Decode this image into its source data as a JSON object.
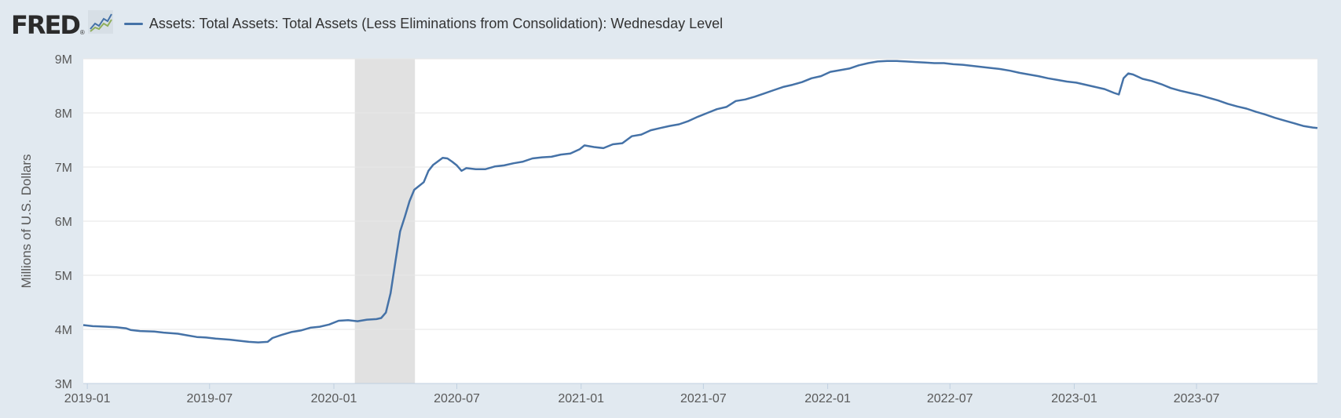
{
  "header": {
    "logo_text": "FRED",
    "logo_mark": "®",
    "series_title": "Assets: Total Assets: Total Assets (Less Eliminations from Consolidation): Wednesday Level"
  },
  "chart_data": {
    "type": "line",
    "title": "",
    "xlabel": "",
    "ylabel": "Millions of U.S. Dollars",
    "y_tick_labels": [
      "3M",
      "4M",
      "5M",
      "6M",
      "7M",
      "8M",
      "9M"
    ],
    "y_ticks": [
      3000000,
      4000000,
      5000000,
      6000000,
      7000000,
      8000000,
      9000000
    ],
    "ylim": [
      3000000,
      9000000
    ],
    "x_tick_labels": [
      "2019-01",
      "2019-07",
      "2020-01",
      "2020-07",
      "2021-01",
      "2021-07",
      "2022-01",
      "2022-07",
      "2023-01",
      "2023-07"
    ],
    "x_ticks": [
      "2019-01-01",
      "2019-07-01",
      "2020-01-01",
      "2020-07-01",
      "2021-01-01",
      "2021-07-01",
      "2022-01-01",
      "2022-07-01",
      "2023-01-01",
      "2023-07-01"
    ],
    "xlim": [
      "2018-12-26",
      "2023-12-27"
    ],
    "grid": true,
    "recessions": [
      {
        "start": "2020-02-01",
        "end": "2020-04-30"
      }
    ],
    "colors": {
      "line": "#4572a7",
      "recession": "#e1e1e1",
      "plot_bg": "#ffffff",
      "gridline": "#e6e6e6",
      "page_bg": "#e1e9f0"
    },
    "series": [
      {
        "values": [
          [
            "2018-12-26",
            4080000
          ],
          [
            "2019-01-09",
            4060000
          ],
          [
            "2019-01-30",
            4050000
          ],
          [
            "2019-02-13",
            4040000
          ],
          [
            "2019-02-27",
            4020000
          ],
          [
            "2019-03-06",
            3990000
          ],
          [
            "2019-03-20",
            3970000
          ],
          [
            "2019-04-10",
            3960000
          ],
          [
            "2019-04-24",
            3940000
          ],
          [
            "2019-05-15",
            3920000
          ],
          [
            "2019-05-29",
            3890000
          ],
          [
            "2019-06-12",
            3860000
          ],
          [
            "2019-06-26",
            3850000
          ],
          [
            "2019-07-10",
            3830000
          ],
          [
            "2019-07-31",
            3810000
          ],
          [
            "2019-08-14",
            3790000
          ],
          [
            "2019-08-28",
            3770000
          ],
          [
            "2019-09-11",
            3760000
          ],
          [
            "2019-09-25",
            3770000
          ],
          [
            "2019-10-02",
            3840000
          ],
          [
            "2019-10-16",
            3900000
          ],
          [
            "2019-10-30",
            3950000
          ],
          [
            "2019-11-13",
            3980000
          ],
          [
            "2019-11-27",
            4030000
          ],
          [
            "2019-12-11",
            4050000
          ],
          [
            "2019-12-25",
            4090000
          ],
          [
            "2020-01-08",
            4160000
          ],
          [
            "2020-01-22",
            4170000
          ],
          [
            "2020-02-05",
            4150000
          ],
          [
            "2020-02-19",
            4180000
          ],
          [
            "2020-03-04",
            4190000
          ],
          [
            "2020-03-11",
            4210000
          ],
          [
            "2020-03-18",
            4310000
          ],
          [
            "2020-03-25",
            4670000
          ],
          [
            "2020-04-01",
            5250000
          ],
          [
            "2020-04-08",
            5810000
          ],
          [
            "2020-04-15",
            6080000
          ],
          [
            "2020-04-22",
            6370000
          ],
          [
            "2020-04-29",
            6580000
          ],
          [
            "2020-05-13",
            6720000
          ],
          [
            "2020-05-20",
            6930000
          ],
          [
            "2020-05-27",
            7040000
          ],
          [
            "2020-06-10",
            7170000
          ],
          [
            "2020-06-17",
            7160000
          ],
          [
            "2020-06-24",
            7100000
          ],
          [
            "2020-07-01",
            7030000
          ],
          [
            "2020-07-08",
            6930000
          ],
          [
            "2020-07-15",
            6980000
          ],
          [
            "2020-07-29",
            6960000
          ],
          [
            "2020-08-12",
            6960000
          ],
          [
            "2020-08-26",
            7010000
          ],
          [
            "2020-09-09",
            7030000
          ],
          [
            "2020-09-23",
            7070000
          ],
          [
            "2020-10-07",
            7100000
          ],
          [
            "2020-10-21",
            7160000
          ],
          [
            "2020-11-04",
            7180000
          ],
          [
            "2020-11-18",
            7190000
          ],
          [
            "2020-12-02",
            7230000
          ],
          [
            "2020-12-16",
            7250000
          ],
          [
            "2020-12-30",
            7330000
          ],
          [
            "2021-01-06",
            7400000
          ],
          [
            "2021-01-20",
            7370000
          ],
          [
            "2021-02-03",
            7350000
          ],
          [
            "2021-02-17",
            7420000
          ],
          [
            "2021-03-03",
            7440000
          ],
          [
            "2021-03-17",
            7570000
          ],
          [
            "2021-03-31",
            7600000
          ],
          [
            "2021-04-14",
            7680000
          ],
          [
            "2021-04-28",
            7720000
          ],
          [
            "2021-05-12",
            7760000
          ],
          [
            "2021-05-26",
            7790000
          ],
          [
            "2021-06-09",
            7850000
          ],
          [
            "2021-06-23",
            7930000
          ],
          [
            "2021-07-07",
            8000000
          ],
          [
            "2021-07-21",
            8070000
          ],
          [
            "2021-08-04",
            8110000
          ],
          [
            "2021-08-18",
            8220000
          ],
          [
            "2021-09-01",
            8250000
          ],
          [
            "2021-09-15",
            8300000
          ],
          [
            "2021-09-29",
            8360000
          ],
          [
            "2021-10-13",
            8420000
          ],
          [
            "2021-10-27",
            8480000
          ],
          [
            "2021-11-10",
            8520000
          ],
          [
            "2021-11-24",
            8570000
          ],
          [
            "2021-12-08",
            8640000
          ],
          [
            "2021-12-22",
            8680000
          ],
          [
            "2022-01-05",
            8760000
          ],
          [
            "2022-01-19",
            8790000
          ],
          [
            "2022-02-02",
            8820000
          ],
          [
            "2022-02-16",
            8880000
          ],
          [
            "2022-03-02",
            8920000
          ],
          [
            "2022-03-16",
            8950000
          ],
          [
            "2022-03-30",
            8960000
          ],
          [
            "2022-04-13",
            8960000
          ],
          [
            "2022-04-27",
            8950000
          ],
          [
            "2022-05-11",
            8940000
          ],
          [
            "2022-05-25",
            8930000
          ],
          [
            "2022-06-08",
            8920000
          ],
          [
            "2022-06-22",
            8920000
          ],
          [
            "2022-07-06",
            8900000
          ],
          [
            "2022-07-20",
            8890000
          ],
          [
            "2022-08-03",
            8870000
          ],
          [
            "2022-08-17",
            8850000
          ],
          [
            "2022-08-31",
            8830000
          ],
          [
            "2022-09-14",
            8810000
          ],
          [
            "2022-09-28",
            8780000
          ],
          [
            "2022-10-12",
            8740000
          ],
          [
            "2022-10-26",
            8710000
          ],
          [
            "2022-11-09",
            8680000
          ],
          [
            "2022-11-23",
            8640000
          ],
          [
            "2022-12-07",
            8610000
          ],
          [
            "2022-12-21",
            8580000
          ],
          [
            "2023-01-04",
            8560000
          ],
          [
            "2023-01-18",
            8520000
          ],
          [
            "2023-02-01",
            8480000
          ],
          [
            "2023-02-15",
            8440000
          ],
          [
            "2023-03-01",
            8370000
          ],
          [
            "2023-03-08",
            8340000
          ],
          [
            "2023-03-15",
            8640000
          ],
          [
            "2023-03-22",
            8730000
          ],
          [
            "2023-03-29",
            8710000
          ],
          [
            "2023-04-12",
            8630000
          ],
          [
            "2023-04-26",
            8590000
          ],
          [
            "2023-05-10",
            8530000
          ],
          [
            "2023-05-24",
            8460000
          ],
          [
            "2023-06-07",
            8410000
          ],
          [
            "2023-06-21",
            8370000
          ],
          [
            "2023-07-05",
            8330000
          ],
          [
            "2023-07-19",
            8280000
          ],
          [
            "2023-08-02",
            8230000
          ],
          [
            "2023-08-16",
            8170000
          ],
          [
            "2023-08-30",
            8120000
          ],
          [
            "2023-09-13",
            8080000
          ],
          [
            "2023-09-27",
            8020000
          ],
          [
            "2023-10-11",
            7970000
          ],
          [
            "2023-10-25",
            7910000
          ],
          [
            "2023-11-08",
            7860000
          ],
          [
            "2023-11-22",
            7810000
          ],
          [
            "2023-12-06",
            7760000
          ],
          [
            "2023-12-20",
            7730000
          ],
          [
            "2023-12-27",
            7720000
          ]
        ]
      }
    ]
  }
}
